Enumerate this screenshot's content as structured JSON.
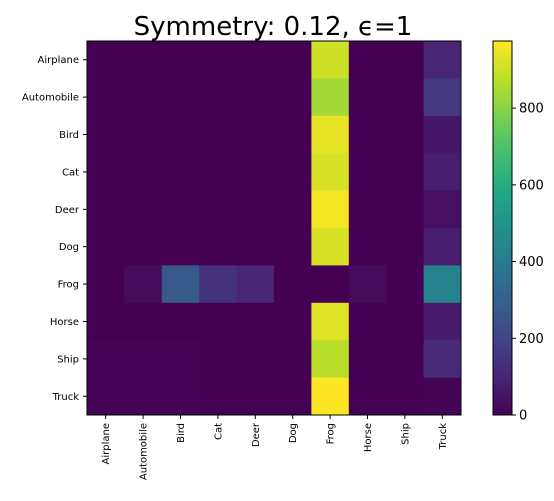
{
  "chart_data": {
    "type": "heatmap",
    "title": "Symmetry: 0.12, ϵ=1",
    "xlabel": "",
    "ylabel": "",
    "x_categories": [
      "Airplane",
      "Automobile",
      "Bird",
      "Cat",
      "Deer",
      "Dog",
      "Frog",
      "Horse",
      "Ship",
      "Truck"
    ],
    "y_categories": [
      "Airplane",
      "Automobile",
      "Bird",
      "Cat",
      "Deer",
      "Dog",
      "Frog",
      "Horse",
      "Ship",
      "Truck"
    ],
    "values": [
      [
        0,
        0,
        0,
        0,
        0,
        0,
        900,
        0,
        0,
        100
      ],
      [
        0,
        0,
        0,
        0,
        0,
        0,
        840,
        0,
        0,
        160
      ],
      [
        0,
        0,
        0,
        0,
        0,
        0,
        940,
        0,
        0,
        60
      ],
      [
        0,
        0,
        0,
        0,
        0,
        0,
        920,
        0,
        0,
        80
      ],
      [
        0,
        0,
        0,
        0,
        0,
        0,
        960,
        0,
        0,
        40
      ],
      [
        0,
        0,
        0,
        0,
        0,
        0,
        920,
        0,
        0,
        80
      ],
      [
        0,
        30,
        270,
        140,
        100,
        0,
        0,
        30,
        0,
        430
      ],
      [
        0,
        0,
        0,
        0,
        0,
        0,
        930,
        0,
        0,
        70
      ],
      [
        5,
        5,
        5,
        0,
        0,
        0,
        870,
        0,
        0,
        115
      ],
      [
        5,
        5,
        5,
        0,
        0,
        0,
        975,
        0,
        0,
        10
      ]
    ],
    "colorbar": {
      "colormap": "viridis",
      "range": [
        0,
        975
      ],
      "ticks": [
        "0",
        "200",
        "400",
        "600",
        "800"
      ],
      "tick_values": [
        0,
        200,
        400,
        600,
        800
      ]
    }
  }
}
